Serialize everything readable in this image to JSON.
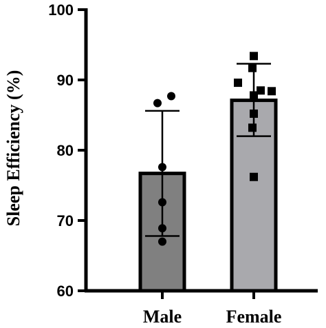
{
  "chart_data": {
    "type": "bar",
    "title": "",
    "xlabel": "",
    "ylabel": "Sleep Efficiency (%)",
    "ylim": [
      60,
      100
    ],
    "yticks": [
      "60",
      "70",
      "80",
      "90",
      "100"
    ],
    "categories": [
      "Male",
      "Female"
    ],
    "values": [
      76.7,
      87.1
    ],
    "error_low": [
      67.8,
      82.0
    ],
    "error_high": [
      85.6,
      92.3
    ],
    "bar_colors": [
      "#808080",
      "#a9a9ad"
    ],
    "points": [
      {
        "category": "Male",
        "marker": "circle",
        "values": [
          87.7,
          86.7,
          77.6,
          72.6,
          68.9,
          67.0
        ]
      },
      {
        "category": "Female",
        "marker": "square",
        "values": [
          93.4,
          91.7,
          89.6,
          88.5,
          88.4,
          87.8,
          85.2,
          83.2,
          76.2
        ]
      }
    ],
    "grid": false,
    "legend": "none"
  }
}
